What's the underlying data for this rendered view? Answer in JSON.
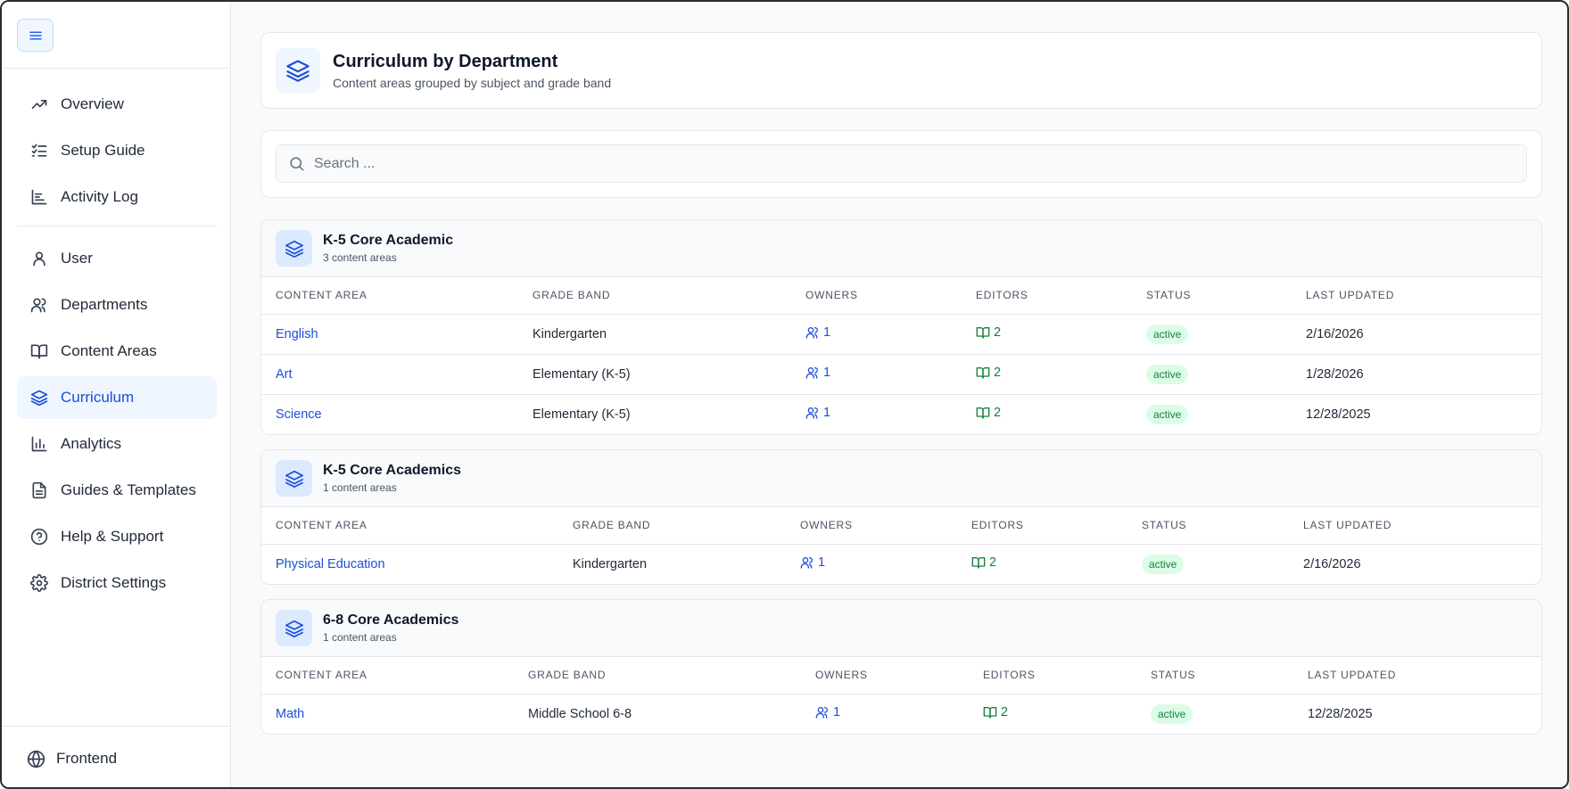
{
  "sidebar": {
    "items": [
      {
        "label": "Overview",
        "icon": "trending-up-icon"
      },
      {
        "label": "Setup Guide",
        "icon": "checklist-icon"
      },
      {
        "label": "Activity Log",
        "icon": "bar-chart-icon"
      },
      {
        "label": "User",
        "icon": "user-icon"
      },
      {
        "label": "Departments",
        "icon": "users-icon"
      },
      {
        "label": "Content Areas",
        "icon": "book-icon"
      },
      {
        "label": "Curriculum",
        "icon": "layers-icon"
      },
      {
        "label": "Analytics",
        "icon": "analytics-icon"
      },
      {
        "label": "Guides & Templates",
        "icon": "document-icon"
      },
      {
        "label": "Help & Support",
        "icon": "help-icon"
      },
      {
        "label": "District Settings",
        "icon": "gear-icon"
      }
    ],
    "active": "Curriculum",
    "footer": {
      "label": "Frontend",
      "icon": "globe-icon"
    }
  },
  "header": {
    "title": "Curriculum by Department",
    "subtitle": "Content areas grouped by subject and grade band"
  },
  "search": {
    "placeholder": "Search ..."
  },
  "columns": [
    "CONTENT AREA",
    "GRADE BAND",
    "OWNERS",
    "EDITORS",
    "STATUS",
    "LAST UPDATED"
  ],
  "groups": [
    {
      "title": "K-5 Core Academic",
      "subtitle": "3 content areas",
      "rows": [
        {
          "name": "English",
          "grade": "Kindergarten",
          "owners": "1",
          "editors": "2",
          "status": "active",
          "updated": "2/16/2026"
        },
        {
          "name": "Art",
          "grade": "Elementary (K-5)",
          "owners": "1",
          "editors": "2",
          "status": "active",
          "updated": "1/28/2026"
        },
        {
          "name": "Science",
          "grade": "Elementary (K-5)",
          "owners": "1",
          "editors": "2",
          "status": "active",
          "updated": "12/28/2025"
        }
      ]
    },
    {
      "title": "K-5 Core Academics",
      "subtitle": "1 content areas",
      "rows": [
        {
          "name": "Physical Education",
          "grade": "Kindergarten",
          "owners": "1",
          "editors": "2",
          "status": "active",
          "updated": "2/16/2026"
        }
      ]
    },
    {
      "title": "6-8 Core Academics",
      "subtitle": "1 content areas",
      "rows": [
        {
          "name": "Math",
          "grade": "Middle School 6-8",
          "owners": "1",
          "editors": "2",
          "status": "active",
          "updated": "12/28/2025"
        }
      ]
    }
  ],
  "colors": {
    "accent": "#1d4ed8",
    "success": "#15803d",
    "success_bg": "#dcfce7"
  }
}
